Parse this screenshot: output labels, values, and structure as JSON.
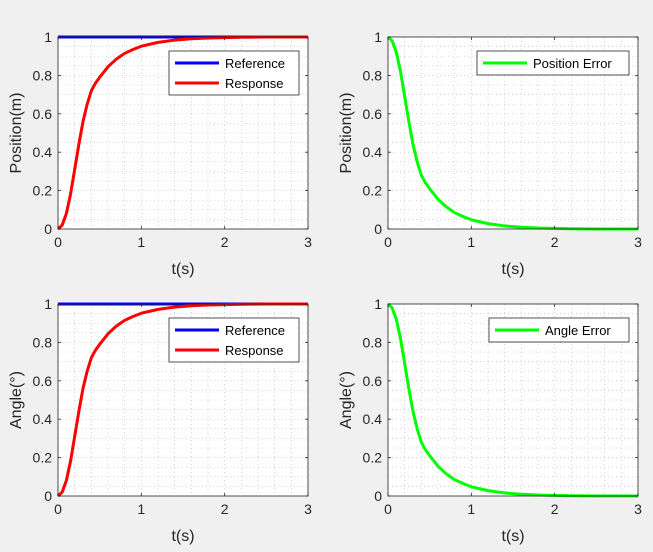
{
  "figure": {
    "background": "#f0f0f0"
  },
  "chart_data": [
    {
      "id": "position-response",
      "type": "line",
      "title": "",
      "xlabel": "t(s)",
      "ylabel": "Position(m)",
      "xlim": [
        0,
        3
      ],
      "ylim": [
        0,
        1
      ],
      "xticks": [
        "0",
        "1",
        "2",
        "3"
      ],
      "yticks": [
        "0",
        "0.2",
        "0.4",
        "0.6",
        "0.8",
        "1"
      ],
      "grid": "minor-dotted",
      "legend_position": "top-right",
      "series": [
        {
          "name": "Reference",
          "color": "#0000ff",
          "x": [
            0,
            3
          ],
          "y": [
            1,
            1
          ]
        },
        {
          "name": "Response",
          "color": "#ff0000",
          "x": [
            0,
            0.05,
            0.1,
            0.15,
            0.2,
            0.25,
            0.3,
            0.35,
            0.4,
            0.45,
            0.5,
            0.6,
            0.7,
            0.8,
            0.9,
            1.0,
            1.2,
            1.4,
            1.6,
            1.8,
            2.0,
            2.2,
            2.5,
            3.0
          ],
          "y": [
            0,
            0.02,
            0.08,
            0.18,
            0.31,
            0.44,
            0.56,
            0.65,
            0.72,
            0.76,
            0.79,
            0.845,
            0.885,
            0.915,
            0.935,
            0.952,
            0.972,
            0.984,
            0.991,
            0.995,
            0.997,
            0.999,
            1.0,
            1.0
          ]
        }
      ]
    },
    {
      "id": "position-error",
      "type": "line",
      "title": "",
      "xlabel": "t(s)",
      "ylabel": "Position(m)",
      "xlim": [
        0,
        3
      ],
      "ylim": [
        0,
        1
      ],
      "xticks": [
        "0",
        "1",
        "2",
        "3"
      ],
      "yticks": [
        "0",
        "0.2",
        "0.4",
        "0.6",
        "0.8",
        "1"
      ],
      "grid": "minor-dotted",
      "legend_position": "top-right",
      "series": [
        {
          "name": "Position Error",
          "color": "#00ff00",
          "x": [
            0,
            0.05,
            0.1,
            0.15,
            0.2,
            0.25,
            0.3,
            0.35,
            0.4,
            0.45,
            0.5,
            0.6,
            0.7,
            0.8,
            0.9,
            1.0,
            1.2,
            1.4,
            1.6,
            1.8,
            2.0,
            2.2,
            2.5,
            3.0
          ],
          "y": [
            1,
            0.98,
            0.92,
            0.82,
            0.69,
            0.56,
            0.44,
            0.35,
            0.28,
            0.24,
            0.21,
            0.155,
            0.115,
            0.085,
            0.065,
            0.048,
            0.028,
            0.016,
            0.009,
            0.005,
            0.003,
            0.001,
            0.0,
            0.0
          ]
        }
      ]
    },
    {
      "id": "angle-response",
      "type": "line",
      "title": "",
      "xlabel": "t(s)",
      "ylabel": "Angle(°)",
      "xlim": [
        0,
        3
      ],
      "ylim": [
        0,
        1
      ],
      "xticks": [
        "0",
        "1",
        "2",
        "3"
      ],
      "yticks": [
        "0",
        "0.2",
        "0.4",
        "0.6",
        "0.8",
        "1"
      ],
      "grid": "minor-dotted",
      "legend_position": "top-right",
      "series": [
        {
          "name": "Reference",
          "color": "#0000ff",
          "x": [
            0,
            3
          ],
          "y": [
            1,
            1
          ]
        },
        {
          "name": "Response",
          "color": "#ff0000",
          "x": [
            0,
            0.05,
            0.1,
            0.15,
            0.2,
            0.25,
            0.3,
            0.35,
            0.4,
            0.45,
            0.5,
            0.6,
            0.7,
            0.8,
            0.9,
            1.0,
            1.2,
            1.4,
            1.6,
            1.8,
            2.0,
            2.2,
            2.5,
            3.0
          ],
          "y": [
            0,
            0.02,
            0.08,
            0.18,
            0.31,
            0.44,
            0.56,
            0.65,
            0.72,
            0.76,
            0.79,
            0.845,
            0.885,
            0.915,
            0.935,
            0.952,
            0.972,
            0.984,
            0.991,
            0.995,
            0.997,
            0.999,
            1.0,
            1.0
          ]
        }
      ]
    },
    {
      "id": "angle-error",
      "type": "line",
      "title": "",
      "xlabel": "t(s)",
      "ylabel": "Angle(°)",
      "xlim": [
        0,
        3
      ],
      "ylim": [
        0,
        1
      ],
      "xticks": [
        "0",
        "1",
        "2",
        "3"
      ],
      "yticks": [
        "0",
        "0.2",
        "0.4",
        "0.6",
        "0.8",
        "1"
      ],
      "grid": "minor-dotted",
      "legend_position": "top-right",
      "series": [
        {
          "name": "Angle Error",
          "color": "#00ff00",
          "x": [
            0,
            0.05,
            0.1,
            0.15,
            0.2,
            0.25,
            0.3,
            0.35,
            0.4,
            0.45,
            0.5,
            0.6,
            0.7,
            0.8,
            0.9,
            1.0,
            1.2,
            1.4,
            1.6,
            1.8,
            2.0,
            2.2,
            2.5,
            3.0
          ],
          "y": [
            1,
            0.98,
            0.92,
            0.82,
            0.69,
            0.56,
            0.44,
            0.35,
            0.28,
            0.24,
            0.21,
            0.155,
            0.115,
            0.085,
            0.065,
            0.048,
            0.028,
            0.016,
            0.009,
            0.005,
            0.003,
            0.001,
            0.0,
            0.0
          ]
        }
      ]
    }
  ]
}
